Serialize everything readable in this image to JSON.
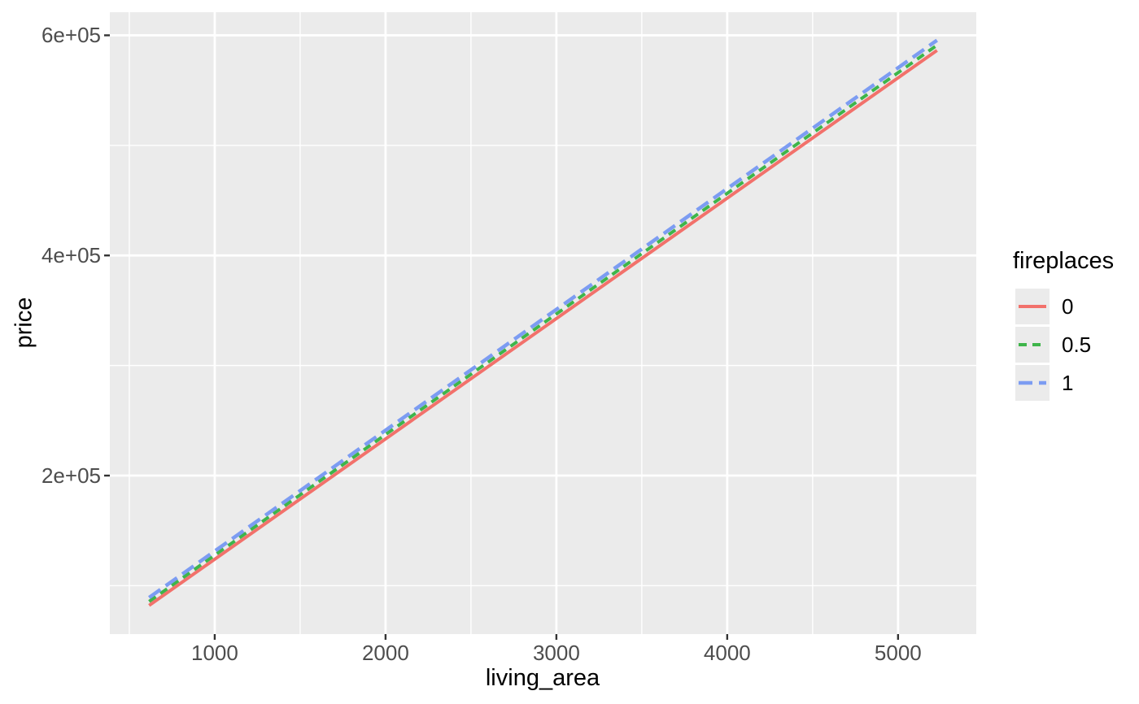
{
  "figure": {
    "background": "#FFFFFF",
    "panel_background": "#EBEBEB",
    "grid_color": "#FFFFFF",
    "tick_mark_color": "#333333",
    "tick_label_color": "#4D4D4D",
    "axis_title_color": "#000000"
  },
  "chart_data": {
    "type": "line",
    "title": "",
    "xlabel": "living_area",
    "ylabel": "price",
    "xlim": [
      386,
      5458
    ],
    "ylim": [
      56000,
      621000
    ],
    "grid": true,
    "x_ticks": [
      {
        "value": 1000,
        "label": "1000"
      },
      {
        "value": 2000,
        "label": "2000"
      },
      {
        "value": 3000,
        "label": "3000"
      },
      {
        "value": 4000,
        "label": "4000"
      },
      {
        "value": 5000,
        "label": "5000"
      }
    ],
    "x_minor": [
      500,
      1500,
      2500,
      3500,
      4500
    ],
    "y_ticks": [
      {
        "value": 200000,
        "label": "2e+05"
      },
      {
        "value": 400000,
        "label": "4e+05"
      },
      {
        "value": 600000,
        "label": "6e+05"
      }
    ],
    "y_minor": [
      100000,
      300000,
      500000
    ],
    "legend_title": "fireplaces",
    "legend_position": "right",
    "series": [
      {
        "name": "0",
        "color": "#F2716B",
        "dash": "",
        "width": 4,
        "x": [
          616,
          5228
        ],
        "y": [
          82000,
          586300
        ]
      },
      {
        "name": "0.5",
        "color": "#3EB54A",
        "dash": "10,7",
        "width": 4,
        "x": [
          616,
          5228
        ],
        "y": [
          85600,
          591000
        ]
      },
      {
        "name": "1",
        "color": "#7C9CF2",
        "dash": "17,8",
        "width": 4.5,
        "x": [
          616,
          5228
        ],
        "y": [
          89200,
          595500
        ]
      }
    ]
  }
}
